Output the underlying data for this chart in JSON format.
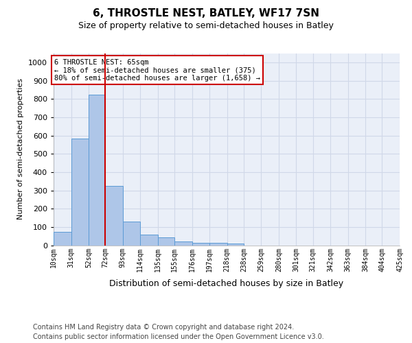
{
  "title": "6, THROSTLE NEST, BATLEY, WF17 7SN",
  "subtitle": "Size of property relative to semi-detached houses in Batley",
  "xlabel": "Distribution of semi-detached houses by size in Batley",
  "ylabel": "Number of semi-detached properties",
  "footer_line1": "Contains HM Land Registry data © Crown copyright and database right 2024.",
  "footer_line2": "Contains public sector information licensed under the Open Government Licence v3.0.",
  "property_label": "6 THROSTLE NEST: 65sqm",
  "pct_smaller": 18,
  "count_smaller": 375,
  "pct_larger": 80,
  "count_larger": 1658,
  "bin_edges": [
    10,
    31,
    52,
    72,
    93,
    114,
    135,
    155,
    176,
    197,
    218,
    238,
    259,
    280,
    301,
    321,
    342,
    363,
    384,
    404,
    425
  ],
  "bin_labels": [
    "10sqm",
    "31sqm",
    "52sqm",
    "72sqm",
    "93sqm",
    "114sqm",
    "135sqm",
    "155sqm",
    "176sqm",
    "197sqm",
    "218sqm",
    "238sqm",
    "259sqm",
    "280sqm",
    "301sqm",
    "321sqm",
    "342sqm",
    "363sqm",
    "384sqm",
    "404sqm",
    "425sqm"
  ],
  "bar_heights": [
    75,
    585,
    825,
    325,
    130,
    58,
    45,
    20,
    15,
    15,
    8,
    0,
    0,
    0,
    0,
    0,
    0,
    0,
    0,
    0
  ],
  "bar_color": "#aec6e8",
  "bar_edge_color": "#5b9bd5",
  "vline_color": "#cc0000",
  "vline_x": 72,
  "ylim": [
    0,
    1050
  ],
  "yticks": [
    0,
    100,
    200,
    300,
    400,
    500,
    600,
    700,
    800,
    900,
    1000
  ],
  "grid_color": "#d0d8e8",
  "background_color": "#eaeff8",
  "annotation_box_color": "#ffffff",
  "annotation_box_edge": "#cc0000"
}
